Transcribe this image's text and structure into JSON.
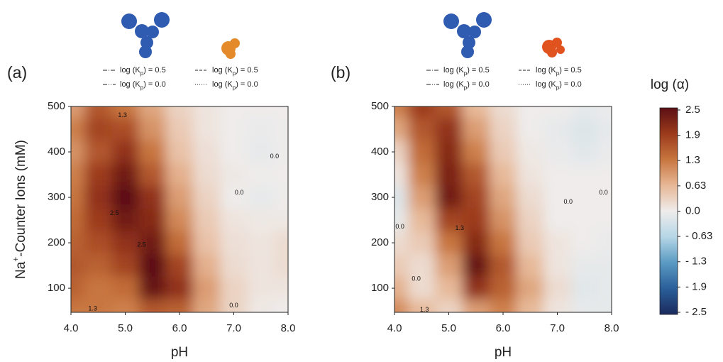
{
  "chart_data": [
    {
      "type": "contour",
      "panel_label": "(a)",
      "legend": [
        {
          "pre": "log (K",
          "sub": "p",
          "post": ") = 0.5",
          "style": "dash-dot"
        },
        {
          "pre": "log (K",
          "sub": "p",
          "post": ") = 0.5",
          "style": "dashed"
        },
        {
          "pre": "log (K",
          "sub": "p",
          "post": ") = 0.0",
          "style": "dash-dot-dot"
        },
        {
          "pre": "log (K",
          "sub": "p",
          "post": ") = 0.0",
          "style": "dotted"
        }
      ],
      "x_label": "pH",
      "y_label": {
        "pre": "Na",
        "sup": "+",
        "post": "-Counter Ions (mM)"
      },
      "x": [
        4,
        4.5,
        5,
        5.5,
        6,
        6.5,
        7,
        7.5,
        8
      ],
      "y": [
        50,
        100,
        150,
        200,
        250,
        300,
        350,
        400,
        450,
        500
      ],
      "z": [
        [
          1.3,
          1.3,
          1.2,
          1.6,
          1.5,
          0.8,
          0.3,
          0.05,
          0.0
        ],
        [
          1.5,
          1.3,
          1.4,
          2.4,
          2.0,
          0.9,
          0.3,
          0.1,
          0.1
        ],
        [
          1.6,
          1.5,
          1.8,
          2.5,
          1.8,
          0.7,
          0.2,
          0.1,
          0.2
        ],
        [
          1.5,
          1.7,
          2.0,
          2.3,
          1.4,
          0.5,
          0.15,
          0.1,
          0.2
        ],
        [
          1.4,
          1.9,
          2.3,
          2.1,
          1.1,
          0.4,
          0.1,
          0.05,
          0.05
        ],
        [
          1.3,
          2.0,
          2.6,
          2.0,
          0.9,
          0.3,
          0.0,
          -0.1,
          0.0
        ],
        [
          1.2,
          1.9,
          2.3,
          1.6,
          0.7,
          0.2,
          0.05,
          0.0,
          0.0
        ],
        [
          1.0,
          1.6,
          2.0,
          1.3,
          0.5,
          0.15,
          0.0,
          -0.1,
          0.0
        ],
        [
          1.2,
          1.8,
          1.7,
          1.0,
          0.4,
          0.1,
          0.0,
          -0.05,
          0.0
        ],
        [
          0.9,
          1.6,
          1.3,
          0.8,
          0.3,
          0.1,
          0.0,
          0.0,
          0.0
        ]
      ],
      "xlim": [
        4,
        8
      ],
      "ylim": [
        47,
        500
      ],
      "xticks": [
        {
          "value": 4,
          "label": "4.0"
        },
        {
          "value": 5,
          "label": "5.0"
        },
        {
          "value": 6,
          "label": "6.0"
        },
        {
          "value": 7,
          "label": "7.0"
        },
        {
          "value": 8,
          "label": "8.0"
        }
      ],
      "yticks": [
        100,
        200,
        300,
        400,
        500
      ],
      "annotations": [
        {
          "x": 4.95,
          "y": 480,
          "text": "1.3"
        },
        {
          "x": 7.75,
          "y": 390,
          "text": "0.0"
        },
        {
          "x": 7.1,
          "y": 310,
          "text": "0.0"
        },
        {
          "x": 4.8,
          "y": 265,
          "text": "2.5"
        },
        {
          "x": 5.3,
          "y": 195,
          "text": "2.5"
        },
        {
          "x": 4.4,
          "y": 55,
          "text": "1.3"
        },
        {
          "x": 7.0,
          "y": 62,
          "text": "0.0"
        }
      ]
    },
    {
      "type": "contour",
      "panel_label": "(b)",
      "legend": [
        {
          "pre": "log (K",
          "sub": "p",
          "post": ") = 0.5",
          "style": "dash-dot"
        },
        {
          "pre": "log (K",
          "sub": "p",
          "post": ") = 0.5",
          "style": "dashed"
        },
        {
          "pre": "log (K",
          "sub": "p",
          "post": ") = 0.0",
          "style": "dash-dot-dot"
        },
        {
          "pre": "log (K",
          "sub": "p",
          "post": ") = 0.0",
          "style": "dotted"
        }
      ],
      "x_label": "pH",
      "x": [
        4,
        4.5,
        5,
        5.5,
        6,
        6.5,
        7,
        7.5,
        8
      ],
      "y": [
        50,
        100,
        150,
        200,
        250,
        300,
        350,
        400,
        450,
        500
      ],
      "z": [
        [
          1.1,
          0.6,
          0.3,
          0.9,
          1.2,
          0.6,
          0.1,
          -0.1,
          -0.1
        ],
        [
          0.7,
          0.2,
          0.6,
          2.0,
          1.5,
          0.8,
          0.2,
          -0.15,
          -0.1
        ],
        [
          0.4,
          0.2,
          0.9,
          2.4,
          1.6,
          0.6,
          0.1,
          -0.1,
          -0.1
        ],
        [
          0.2,
          0.4,
          1.3,
          2.1,
          1.3,
          0.4,
          0.1,
          0.0,
          -0.05
        ],
        [
          -0.1,
          0.6,
          1.8,
          1.9,
          1.0,
          0.3,
          0.0,
          0.0,
          0.0
        ],
        [
          -0.2,
          0.9,
          2.3,
          1.8,
          0.8,
          0.2,
          0.0,
          0.0,
          0.0
        ],
        [
          0.1,
          1.2,
          2.2,
          1.6,
          0.6,
          0.1,
          0.0,
          0.0,
          0.0
        ],
        [
          0.3,
          1.4,
          2.1,
          1.2,
          0.4,
          0.05,
          -0.05,
          -0.15,
          -0.05
        ],
        [
          0.8,
          1.6,
          2.0,
          0.9,
          0.3,
          0.0,
          -0.1,
          -0.2,
          -0.1
        ],
        [
          1.2,
          1.9,
          1.6,
          0.6,
          0.2,
          0.0,
          0.0,
          -0.1,
          -0.05
        ]
      ],
      "xlim": [
        4,
        8
      ],
      "ylim": [
        47,
        500
      ],
      "xticks": [
        {
          "value": 4,
          "label": "4.0"
        },
        {
          "value": 5,
          "label": "5.0"
        },
        {
          "value": 6,
          "label": "6.0"
        },
        {
          "value": 7,
          "label": "7.0"
        },
        {
          "value": 8,
          "label": "8.0"
        }
      ],
      "yticks": [
        100,
        200,
        300,
        400,
        500
      ],
      "annotations": [
        {
          "x": 4.1,
          "y": 235,
          "text": "0.0"
        },
        {
          "x": 4.4,
          "y": 120,
          "text": "0.0"
        },
        {
          "x": 7.2,
          "y": 290,
          "text": "0.0"
        },
        {
          "x": 7.85,
          "y": 310,
          "text": "0.0"
        },
        {
          "x": 5.2,
          "y": 232,
          "text": "1.3"
        },
        {
          "x": 4.55,
          "y": 52,
          "text": "1.3"
        }
      ]
    }
  ],
  "colorbar": {
    "title": "log (α)",
    "ticks": [
      2.5,
      1.9,
      1.3,
      0.63,
      {
        "value": 0,
        "label": "0.0"
      },
      {
        "value": -0.63,
        "label": "- 0.63"
      },
      {
        "value": -1.3,
        "label": "- 1.3"
      },
      {
        "value": -1.9,
        "label": "- 1.9"
      },
      {
        "value": -2.5,
        "label": "- 2.5"
      }
    ],
    "colors": [
      "#5b0f14",
      "#9c3a1c",
      "#c8763f",
      "#e7b796",
      "#efeceb",
      "#b5d6e6",
      "#5a9ac3",
      "#2a5f9a",
      "#1b2a5c"
    ]
  }
}
